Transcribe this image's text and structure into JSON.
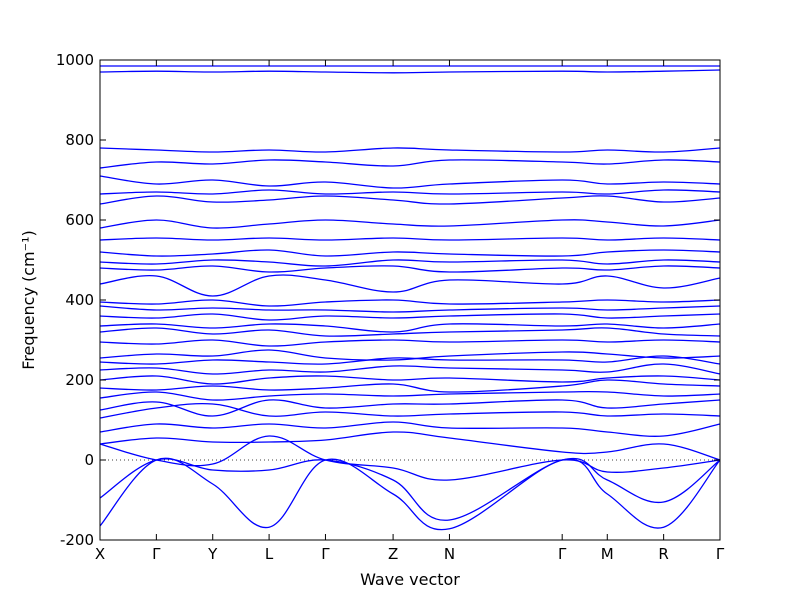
{
  "chart_data": {
    "type": "line",
    "title": "",
    "xlabel": "Wave vector",
    "ylabel": "Frequency (cm⁻¹)",
    "ylim": [
      -200,
      1000
    ],
    "yticks": [
      -200,
      0,
      200,
      400,
      600,
      800,
      1000
    ],
    "xlim": [
      0,
      11
    ],
    "xticks": [
      {
        "label": "X",
        "x": 0
      },
      {
        "label": "Γ",
        "x": 1
      },
      {
        "label": "Y",
        "x": 2
      },
      {
        "label": "L",
        "x": 3
      },
      {
        "label": "Γ",
        "x": 4
      },
      {
        "label": "Z",
        "x": 5.2
      },
      {
        "label": "N",
        "x": 6.2
      },
      {
        "label": "Γ",
        "x": 8.2
      },
      {
        "label": "M",
        "x": 9.0
      },
      {
        "label": "R",
        "x": 10.0
      },
      {
        "label": "Γ",
        "x": 11.0
      }
    ],
    "reference_line": {
      "y": 0,
      "style": "dotted"
    },
    "line_color": "#0000ff",
    "band_x": [
      0,
      1,
      2,
      3,
      4,
      5.2,
      6.2,
      8.2,
      9.0,
      10.0,
      11.0
    ],
    "series": [
      {
        "values": [
          -165,
          0,
          -60,
          -168,
          0,
          -85,
          -172,
          0,
          -85,
          -168,
          0
        ]
      },
      {
        "values": [
          -95,
          0,
          -25,
          -25,
          0,
          -50,
          -150,
          0,
          -50,
          -105,
          0
        ]
      },
      {
        "values": [
          40,
          0,
          -10,
          60,
          0,
          -20,
          -50,
          0,
          -30,
          -20,
          0
        ]
      },
      {
        "values": [
          40,
          55,
          45,
          45,
          50,
          70,
          55,
          20,
          20,
          40,
          0
        ]
      },
      {
        "values": [
          70,
          90,
          80,
          90,
          80,
          95,
          80,
          80,
          70,
          60,
          90
        ]
      },
      {
        "values": [
          105,
          130,
          140,
          110,
          120,
          110,
          115,
          120,
          110,
          115,
          110
        ]
      },
      {
        "values": [
          125,
          145,
          110,
          150,
          130,
          140,
          140,
          150,
          130,
          140,
          150
        ]
      },
      {
        "values": [
          155,
          170,
          150,
          160,
          165,
          160,
          165,
          170,
          170,
          160,
          165
        ]
      },
      {
        "values": [
          180,
          175,
          185,
          175,
          180,
          190,
          170,
          185,
          200,
          190,
          185
        ]
      },
      {
        "values": [
          200,
          210,
          190,
          205,
          210,
          200,
          205,
          195,
          205,
          210,
          200
        ]
      },
      {
        "values": [
          225,
          230,
          215,
          225,
          220,
          235,
          230,
          225,
          220,
          240,
          215
        ]
      },
      {
        "values": [
          245,
          240,
          250,
          245,
          240,
          255,
          250,
          250,
          245,
          260,
          240
        ]
      },
      {
        "values": [
          255,
          265,
          260,
          275,
          255,
          250,
          260,
          270,
          265,
          255,
          260
        ]
      },
      {
        "values": [
          295,
          290,
          300,
          285,
          295,
          300,
          295,
          300,
          295,
          300,
          295
        ]
      },
      {
        "values": [
          320,
          330,
          315,
          325,
          310,
          315,
          320,
          325,
          330,
          315,
          310
        ]
      },
      {
        "values": [
          335,
          340,
          330,
          340,
          335,
          320,
          340,
          335,
          340,
          330,
          340
        ]
      },
      {
        "values": [
          360,
          355,
          365,
          350,
          360,
          355,
          360,
          365,
          355,
          360,
          365
        ]
      },
      {
        "values": [
          385,
          375,
          380,
          375,
          375,
          370,
          375,
          380,
          375,
          380,
          385
        ]
      },
      {
        "values": [
          395,
          390,
          400,
          385,
          395,
          400,
          390,
          395,
          400,
          395,
          400
        ]
      },
      {
        "values": [
          440,
          460,
          410,
          460,
          450,
          420,
          450,
          440,
          460,
          430,
          455
        ]
      },
      {
        "values": [
          480,
          475,
          485,
          470,
          480,
          485,
          470,
          480,
          475,
          485,
          480
        ]
      },
      {
        "values": [
          495,
          490,
          500,
          495,
          485,
          500,
          495,
          500,
          490,
          500,
          495
        ]
      },
      {
        "values": [
          520,
          510,
          515,
          525,
          510,
          520,
          515,
          510,
          520,
          525,
          520
        ]
      },
      {
        "values": [
          550,
          555,
          550,
          555,
          550,
          555,
          550,
          555,
          550,
          555,
          550
        ]
      },
      {
        "values": [
          580,
          600,
          580,
          590,
          600,
          590,
          585,
          600,
          595,
          585,
          600
        ]
      },
      {
        "values": [
          640,
          660,
          645,
          650,
          660,
          650,
          640,
          655,
          660,
          645,
          655
        ]
      },
      {
        "values": [
          665,
          670,
          665,
          675,
          665,
          670,
          665,
          670,
          665,
          675,
          670
        ]
      },
      {
        "values": [
          710,
          690,
          700,
          685,
          695,
          680,
          690,
          700,
          690,
          695,
          690
        ]
      },
      {
        "values": [
          730,
          745,
          740,
          750,
          745,
          735,
          750,
          745,
          740,
          750,
          745
        ]
      },
      {
        "values": [
          780,
          775,
          770,
          775,
          770,
          780,
          775,
          770,
          775,
          770,
          780
        ]
      },
      {
        "values": [
          970,
          972,
          970,
          972,
          970,
          968,
          970,
          972,
          970,
          972,
          975
        ]
      },
      {
        "values": [
          985,
          985,
          985,
          985,
          985,
          985,
          985,
          985,
          985,
          985,
          985
        ]
      }
    ]
  }
}
